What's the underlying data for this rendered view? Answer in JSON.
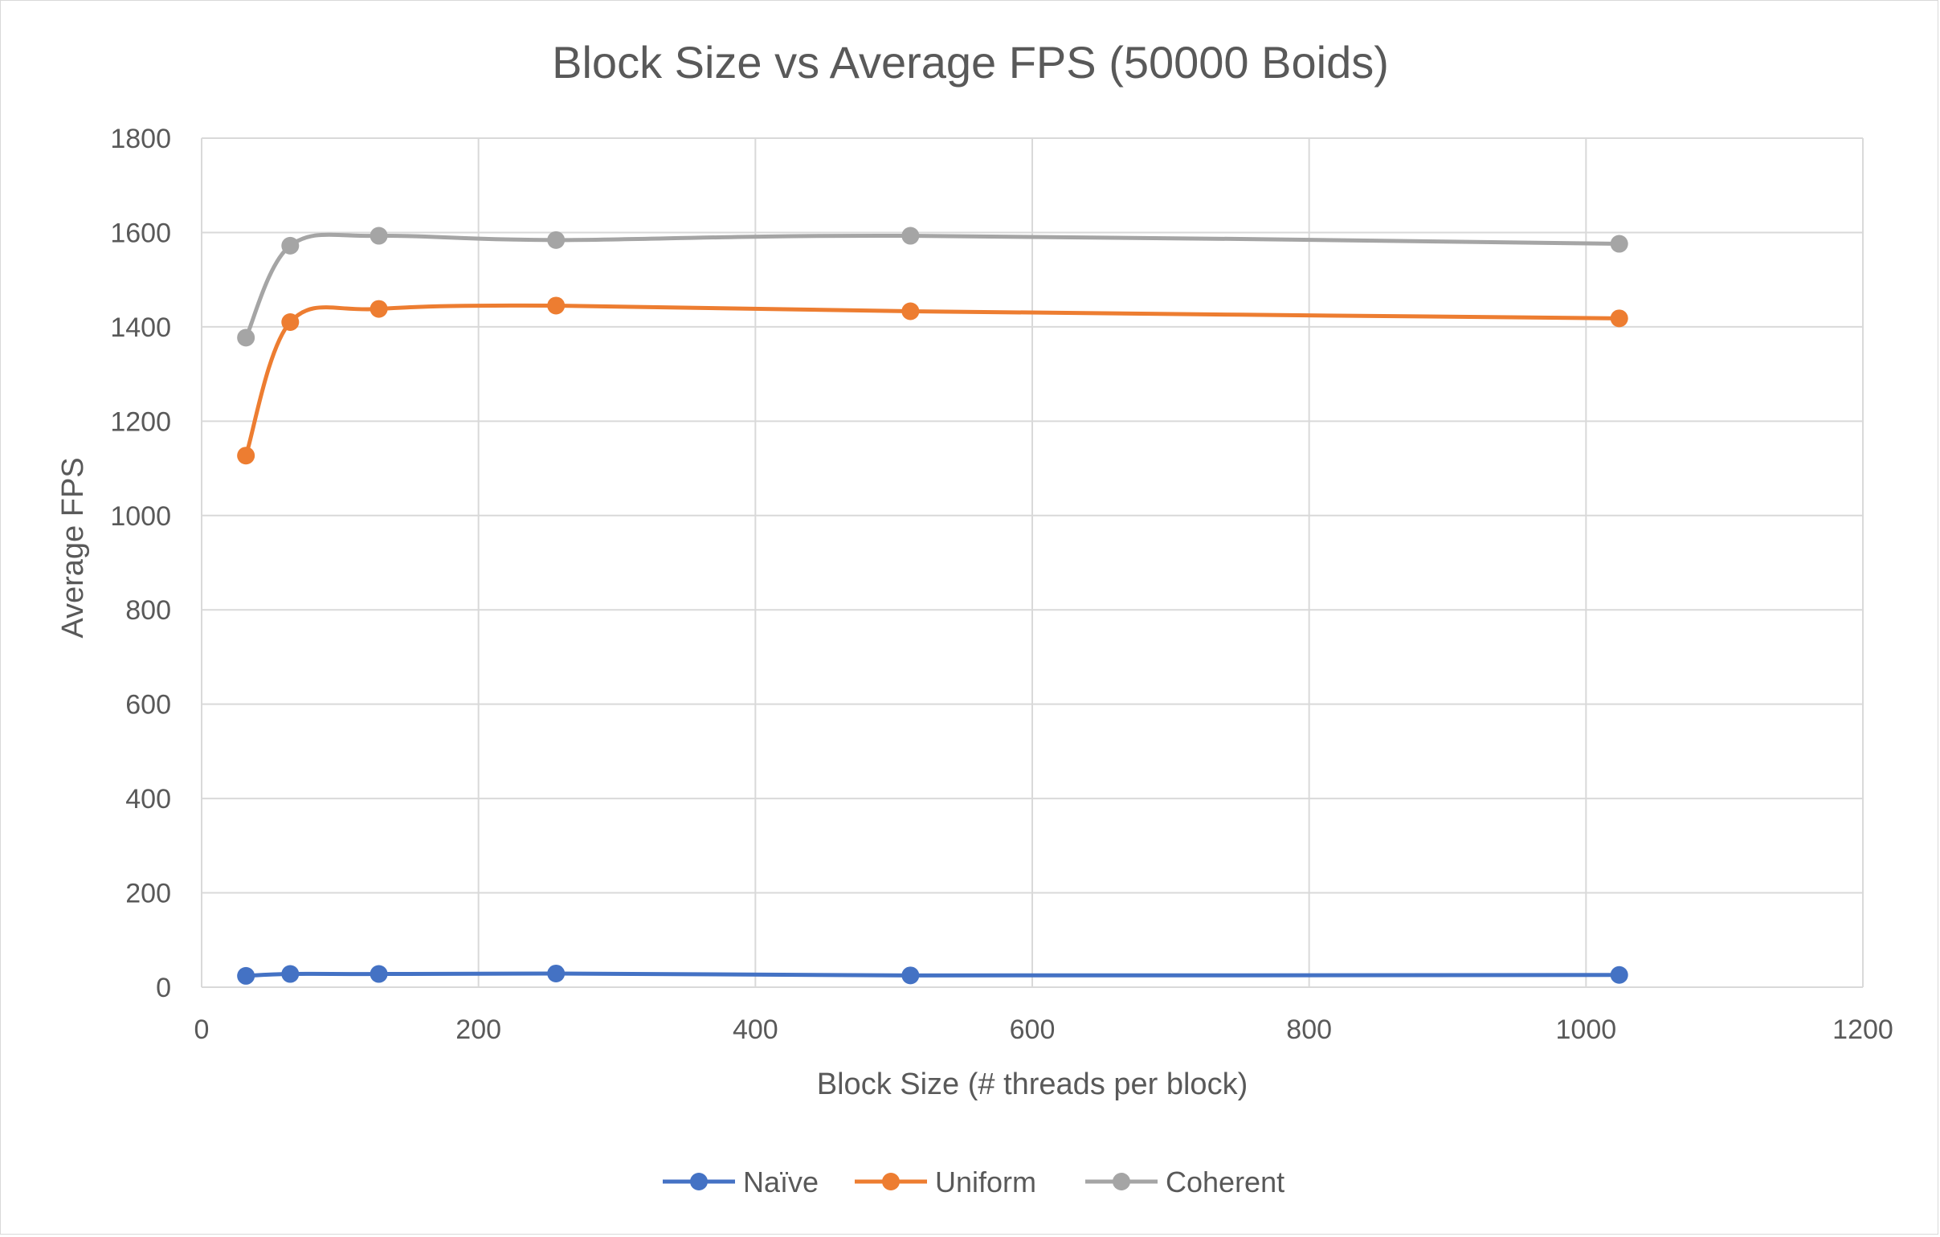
{
  "chart_data": {
    "type": "line",
    "title": "Block Size vs Average FPS (50000 Boids)",
    "xlabel": "Block Size (# threads per block)",
    "ylabel": "Average FPS",
    "xlim": [
      0,
      1200
    ],
    "ylim": [
      0,
      1800
    ],
    "x_ticks": [
      0,
      200,
      400,
      600,
      800,
      1000,
      1200
    ],
    "y_ticks": [
      0,
      200,
      400,
      600,
      800,
      1000,
      1200,
      1400,
      1600,
      1800
    ],
    "grid": true,
    "smooth": true,
    "legend_position": "bottom",
    "x": [
      32,
      64,
      128,
      256,
      512,
      1024
    ],
    "series": [
      {
        "name": "Naïve",
        "color": "#4472c4",
        "values": [
          24,
          28,
          28,
          29,
          25,
          26
        ]
      },
      {
        "name": "Uniform",
        "color": "#ed7d31",
        "values": [
          1127,
          1410,
          1438,
          1445,
          1433,
          1418
        ]
      },
      {
        "name": "Coherent",
        "color": "#a5a5a5",
        "values": [
          1377,
          1572,
          1593,
          1584,
          1593,
          1576
        ]
      }
    ]
  }
}
